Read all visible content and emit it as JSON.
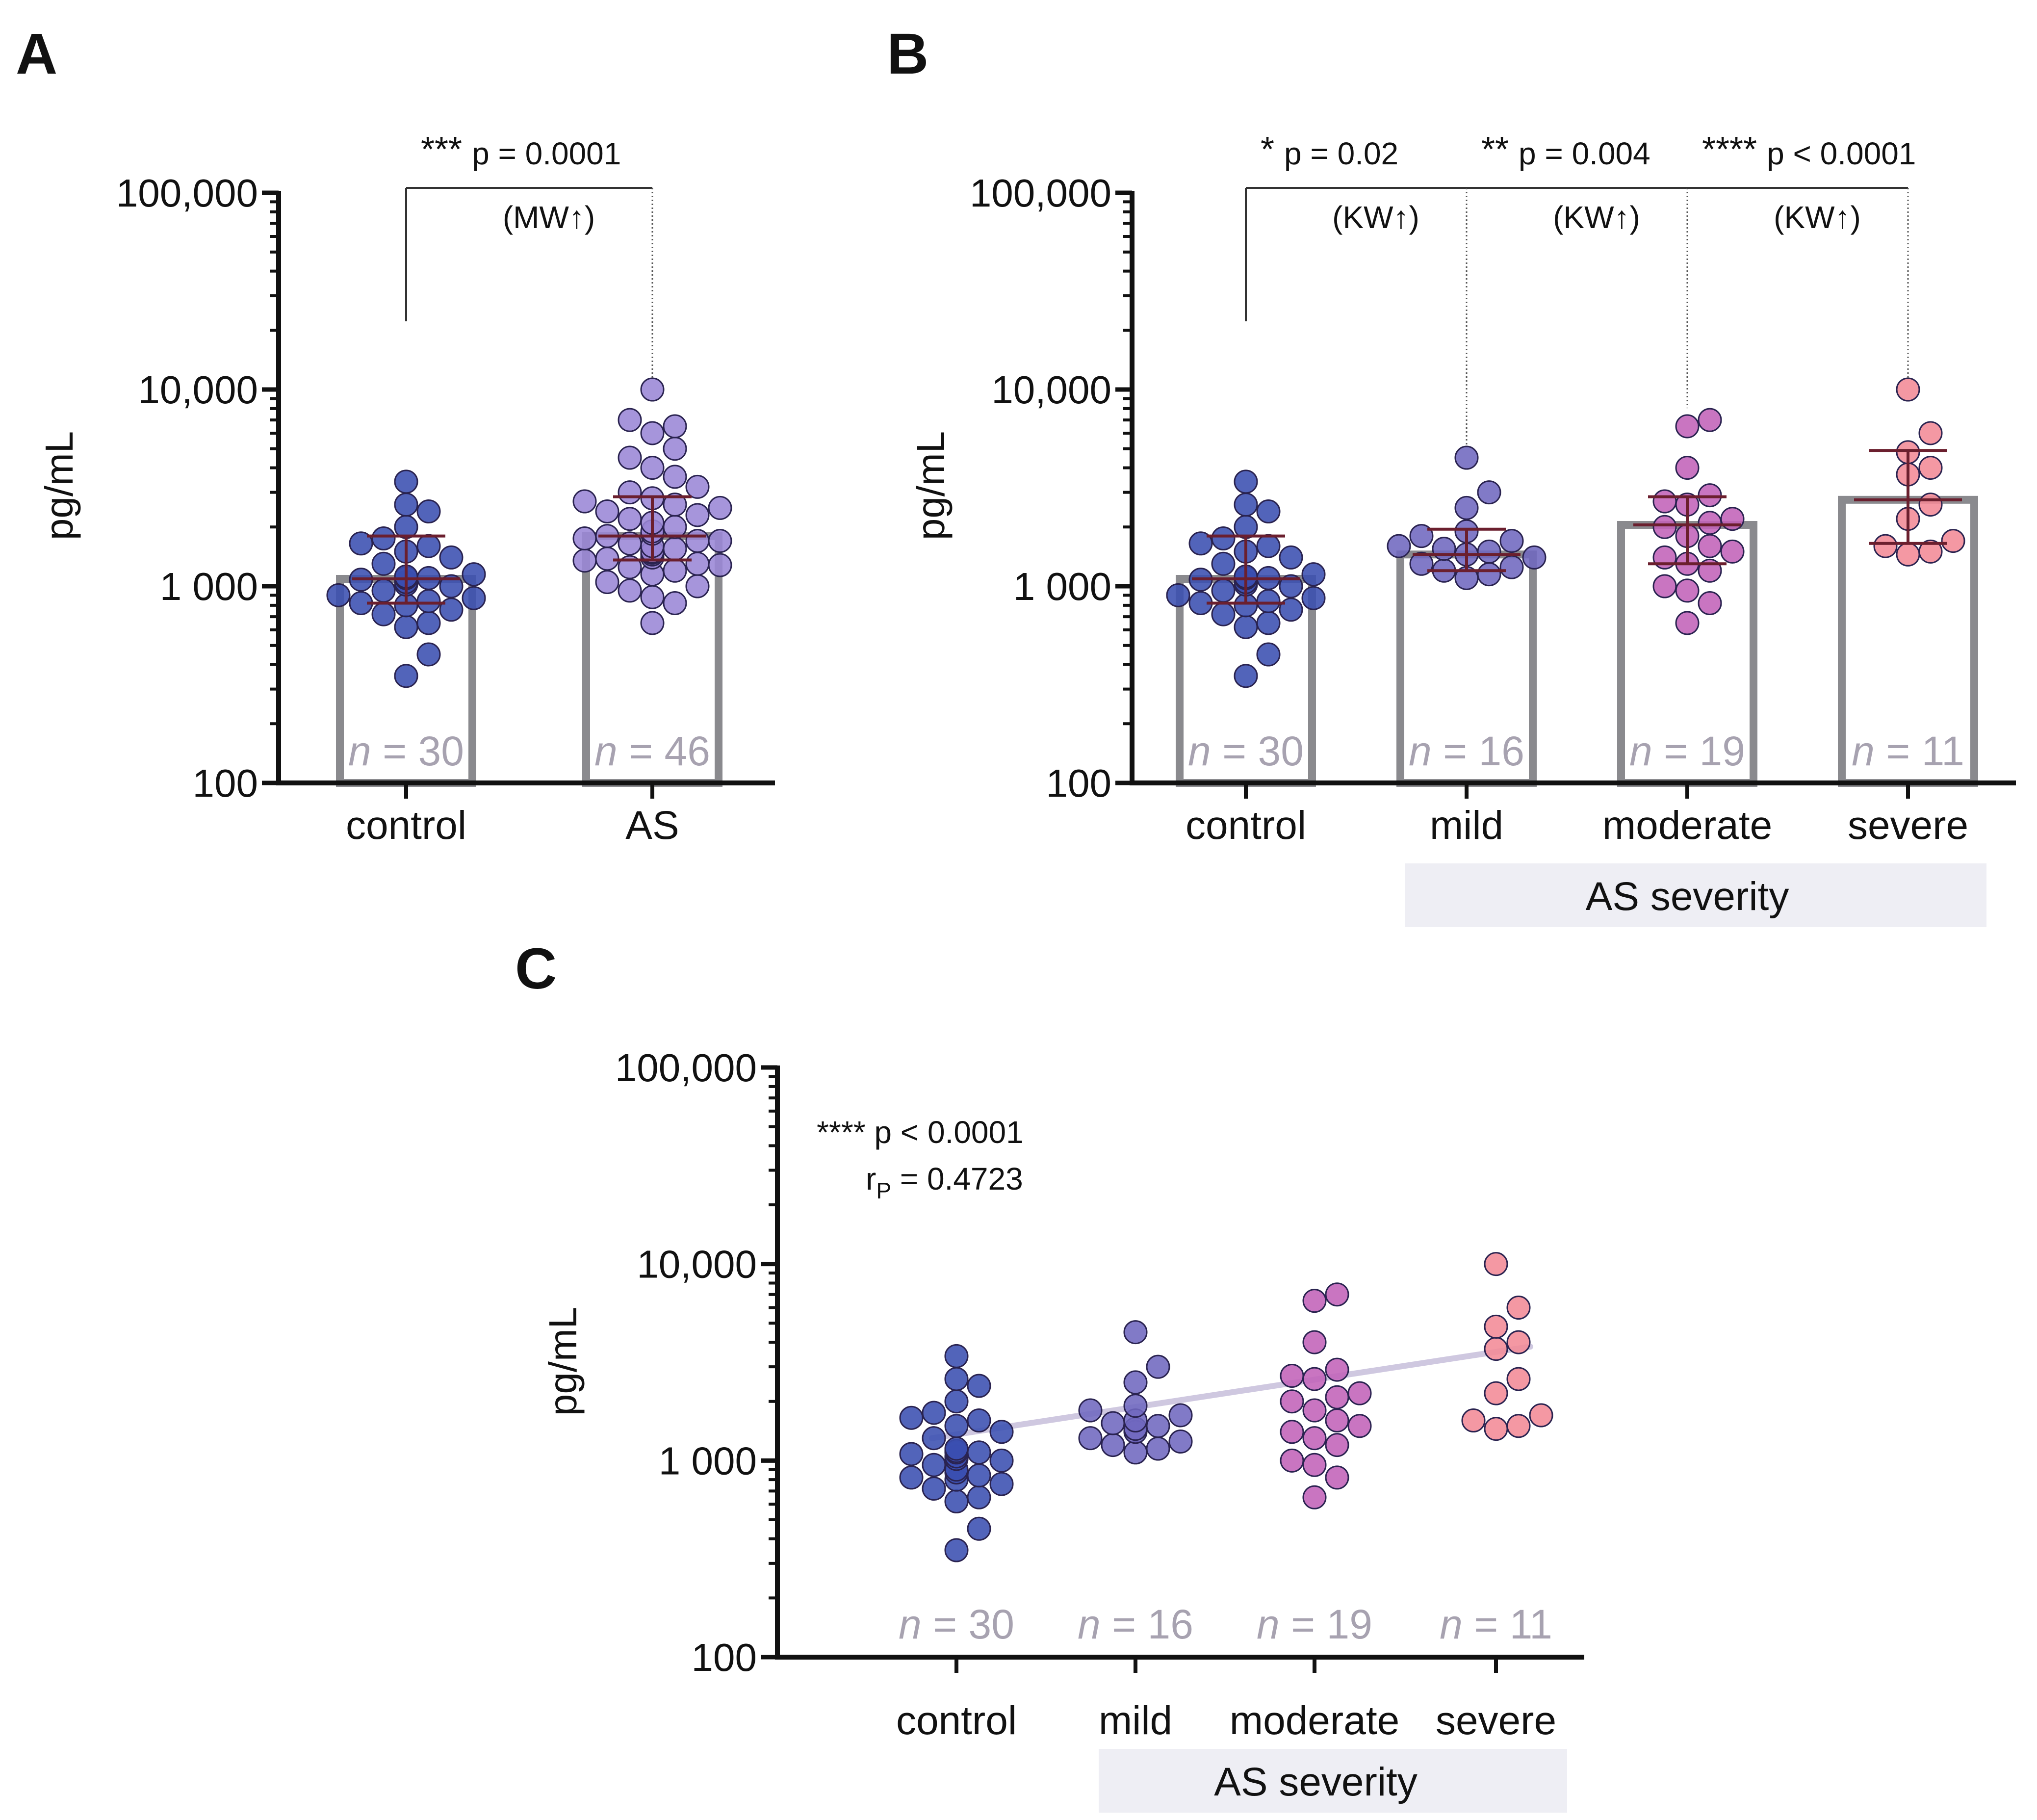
{
  "chart_data": [
    {
      "panel": "A",
      "type": "bar",
      "ylabel": "pg/mL",
      "yscale": "log",
      "ylim": [
        100,
        100000
      ],
      "yticks": [
        "100",
        "1 000",
        "10,000",
        "100,000"
      ],
      "categories": [
        "control",
        "AS"
      ],
      "bar_values": [
        1090,
        1800
      ],
      "error_bars": [
        [
          820,
          1800
        ],
        [
          1360,
          2850
        ]
      ],
      "n_labels": [
        "30",
        "46"
      ],
      "n_prefix": "n",
      "colors": [
        "#3a4fb0",
        "#9a86d6"
      ],
      "points": [
        [
          350,
          450,
          620,
          650,
          720,
          760,
          800,
          820,
          840,
          870,
          900,
          950,
          1000,
          1020,
          1050,
          1080,
          1100,
          1100,
          1120,
          1150,
          1300,
          1400,
          1500,
          1600,
          1650,
          1750,
          2000,
          2400,
          2600,
          3400
        ],
        [
          650,
          820,
          880,
          950,
          1000,
          1050,
          1150,
          1200,
          1250,
          1280,
          1300,
          1350,
          1380,
          1400,
          1450,
          1480,
          1500,
          1500,
          1550,
          1600,
          1650,
          1700,
          1700,
          1750,
          1800,
          1850,
          1900,
          2000,
          2100,
          2200,
          2300,
          2400,
          2500,
          2600,
          2700,
          2800,
          3000,
          3200,
          3600,
          4000,
          4500,
          5000,
          6000,
          6500,
          7000,
          10000
        ]
      ],
      "comparisons": [
        {
          "from": 0,
          "to": 1,
          "stars": "***",
          "p_text": "p = 0.0001",
          "test": "(MW↑)"
        }
      ]
    },
    {
      "panel": "B",
      "type": "bar",
      "ylabel": "pg/mL",
      "yscale": "log",
      "ylim": [
        100,
        100000
      ],
      "yticks": [
        "100",
        "1 000",
        "10,000",
        "100,000"
      ],
      "categories": [
        "control",
        "mild",
        "moderate",
        "severe"
      ],
      "group_label": "AS severity",
      "bar_values": [
        1090,
        1450,
        2050,
        2750
      ],
      "error_bars": [
        [
          820,
          1800
        ],
        [
          1200,
          1950
        ],
        [
          1300,
          2850
        ],
        [
          1650,
          4900
        ]
      ],
      "n_labels": [
        "30",
        "16",
        "19",
        "11"
      ],
      "n_prefix": "n",
      "colors": [
        "#3a4fb0",
        "#7068bf",
        "#c262b8",
        "#f28a96"
      ],
      "points": [
        [
          350,
          450,
          620,
          650,
          720,
          760,
          800,
          820,
          840,
          870,
          900,
          950,
          1000,
          1020,
          1050,
          1080,
          1100,
          1100,
          1120,
          1150,
          1300,
          1400,
          1500,
          1600,
          1650,
          1750,
          2000,
          2400,
          2600,
          3400
        ],
        [
          1100,
          1150,
          1200,
          1250,
          1300,
          1400,
          1450,
          1500,
          1550,
          1600,
          1700,
          1800,
          1900,
          2500,
          3000,
          4500
        ],
        [
          650,
          820,
          950,
          1000,
          1200,
          1300,
          1400,
          1500,
          1600,
          1800,
          2000,
          2100,
          2200,
          2600,
          2700,
          2900,
          4000,
          6500,
          7000
        ],
        [
          1450,
          1500,
          1600,
          1700,
          2200,
          2600,
          3700,
          4000,
          4800,
          6000,
          10000
        ]
      ],
      "comparisons": [
        {
          "from": 0,
          "to": 1,
          "stars": "*",
          "p_text": "p = 0.02",
          "test": "(KW↑)"
        },
        {
          "from": 1,
          "to": 2,
          "stars": "**",
          "p_text": "p = 0.004",
          "test": "(KW↑)"
        },
        {
          "from": 2,
          "to": 3,
          "stars": "****",
          "p_text": "p < 0.0001",
          "test": "(KW↑)"
        }
      ]
    },
    {
      "panel": "C",
      "type": "scatter",
      "ylabel": "pg/mL",
      "yscale": "log",
      "ylim": [
        100,
        100000
      ],
      "yticks": [
        "100",
        "1 000",
        "10,000",
        "100,000"
      ],
      "categories": [
        "control",
        "mild",
        "moderate",
        "severe"
      ],
      "group_label": "AS severity",
      "n_labels": [
        "30",
        "16",
        "19",
        "11"
      ],
      "n_prefix": "n",
      "colors": [
        "#3a4fb0",
        "#7068bf",
        "#c262b8",
        "#f28a96"
      ],
      "points": [
        [
          350,
          450,
          620,
          650,
          720,
          760,
          800,
          820,
          840,
          870,
          900,
          950,
          1000,
          1020,
          1050,
          1080,
          1100,
          1100,
          1120,
          1150,
          1300,
          1400,
          1500,
          1600,
          1650,
          1750,
          2000,
          2400,
          2600,
          3400
        ],
        [
          1100,
          1150,
          1200,
          1250,
          1300,
          1400,
          1450,
          1500,
          1550,
          1600,
          1700,
          1800,
          1900,
          2500,
          3000,
          4500
        ],
        [
          650,
          820,
          950,
          1000,
          1200,
          1300,
          1400,
          1500,
          1600,
          1800,
          2000,
          2100,
          2200,
          2600,
          2700,
          2900,
          4000,
          6500,
          7000
        ],
        [
          1450,
          1500,
          1600,
          1700,
          2200,
          2600,
          3700,
          4000,
          4800,
          6000,
          10000
        ]
      ],
      "trendline": {
        "x": [
          0,
          3
        ],
        "y": [
          1300,
          3800
        ],
        "color": "#cfc8e0"
      },
      "stats": {
        "stars": "****",
        "p_text": "p < 0.0001",
        "r_symbol": "r",
        "r_subscript": "P",
        "r_value": "= 0.4723"
      }
    }
  ]
}
